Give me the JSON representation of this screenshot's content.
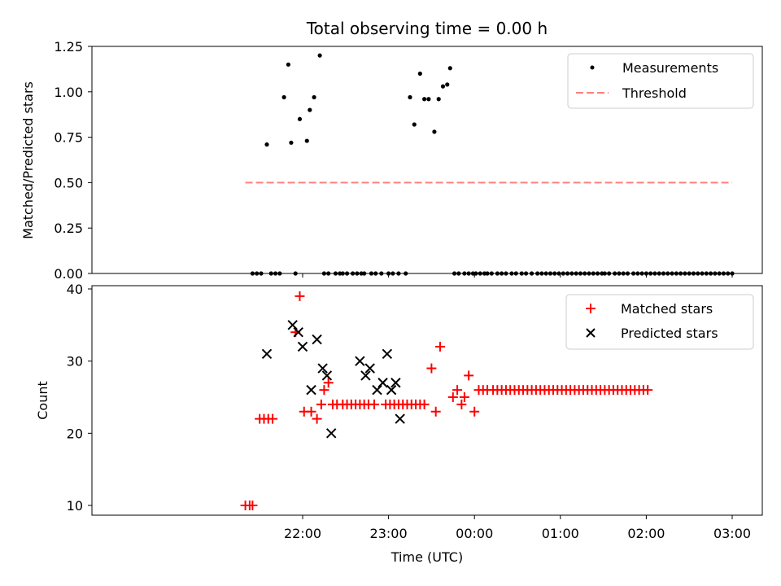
{
  "chart_data": [
    {
      "type": "scatter",
      "title": "Total observing time = 0.00 h",
      "ylabel": "Matched/Predicted stars",
      "xlabel": "",
      "ylim": [
        0,
        1.25
      ],
      "yticks": [
        "0.00",
        "0.25",
        "0.50",
        "0.75",
        "1.00",
        "1.25"
      ],
      "legend": {
        "placement": "top-right",
        "entries": [
          "Measurements",
          "Threshold"
        ]
      },
      "colors": {
        "measurements": "#000000",
        "threshold": "#ff7f7f"
      },
      "series": [
        {
          "name": "Measurements",
          "x": [
            "21:25",
            "21:28",
            "21:31",
            "21:35",
            "21:38",
            "21:41",
            "21:44",
            "21:47",
            "21:50",
            "21:52",
            "21:55",
            "21:58",
            "22:03",
            "22:05",
            "22:08",
            "22:12",
            "22:15",
            "22:18",
            "22:23",
            "22:26",
            "22:28",
            "22:31",
            "22:35",
            "22:38",
            "22:41",
            "22:43",
            "22:48",
            "22:51",
            "22:55",
            "23:00",
            "23:03",
            "23:07",
            "23:12",
            "23:15",
            "23:18",
            "23:22",
            "23:25",
            "23:28",
            "23:32",
            "23:35",
            "23:38",
            "23:41",
            "23:43",
            "23:46",
            "23:49",
            "23:53",
            "23:56",
            "23:59",
            "00:01",
            "00:04",
            "00:07",
            "00:09",
            "00:12",
            "00:16",
            "00:19",
            "00:22",
            "00:26",
            "00:29",
            "00:33",
            "00:36",
            "00:40",
            "00:44",
            "00:47",
            "00:50",
            "00:53",
            "00:56",
            "00:59",
            "01:02",
            "01:05",
            "01:08",
            "01:11",
            "01:14",
            "01:17",
            "01:20",
            "01:23",
            "01:26",
            "01:29",
            "01:31",
            "01:34",
            "01:38",
            "01:41",
            "01:44",
            "01:47",
            "01:51",
            "01:54",
            "01:57",
            "02:00",
            "02:03",
            "02:06",
            "02:09",
            "02:12",
            "02:15",
            "02:18",
            "02:21",
            "02:24",
            "02:27",
            "02:30",
            "02:33",
            "02:36",
            "02:39",
            "02:42",
            "02:45",
            "02:48",
            "02:51",
            "02:54",
            "02:57",
            "03:00"
          ],
          "y": [
            0,
            0,
            0,
            0.71,
            0,
            0,
            0,
            0.97,
            1.15,
            0.72,
            0,
            0.85,
            0.73,
            0.9,
            0.97,
            1.2,
            0,
            0,
            0,
            0,
            0,
            0,
            0,
            0,
            0,
            0,
            0,
            0,
            0,
            0,
            0,
            0,
            0,
            0.97,
            0.82,
            1.1,
            0.96,
            0.96,
            0.78,
            0.96,
            1.03,
            1.04,
            1.13,
            0,
            0,
            0,
            0,
            0,
            0,
            0,
            0,
            0,
            0,
            0,
            0,
            0,
            0,
            0,
            0,
            0,
            0,
            0,
            0,
            0,
            0,
            0,
            0,
            0,
            0,
            0,
            0,
            0,
            0,
            0,
            0,
            0,
            0,
            0,
            0,
            0,
            0,
            0,
            0,
            0,
            0,
            0,
            0,
            0,
            0,
            0,
            0,
            0,
            0,
            0,
            0,
            0,
            0,
            0,
            0,
            0,
            0,
            0,
            0,
            0,
            0,
            0,
            0
          ]
        },
        {
          "name": "Threshold",
          "x": [
            "21:20",
            "03:00"
          ],
          "y": [
            0.5,
            0.5
          ]
        }
      ]
    },
    {
      "type": "scatter",
      "title": "",
      "ylabel": "Count",
      "xlabel": "Time (UTC)",
      "ylim": [
        8,
        40
      ],
      "yticks": [
        "10",
        "20",
        "30",
        "40"
      ],
      "xticks": [
        "22:00",
        "23:00",
        "00:00",
        "01:00",
        "02:00",
        "03:00"
      ],
      "legend": {
        "placement": "top-right",
        "entries": [
          "Matched stars",
          "Predicted stars"
        ]
      },
      "colors": {
        "matched": "#ff0000",
        "predicted": "#000000"
      },
      "series": [
        {
          "name": "Matched stars",
          "x": [
            "21:20",
            "21:23",
            "21:25",
            "21:30",
            "21:33",
            "21:36",
            "21:39",
            "21:55",
            "21:58",
            "22:01",
            "22:06",
            "22:10",
            "22:13",
            "22:15",
            "22:18",
            "22:21",
            "22:24",
            "22:28",
            "22:31",
            "22:34",
            "22:37",
            "22:40",
            "22:43",
            "22:46",
            "22:50",
            "22:58",
            "23:01",
            "23:04",
            "23:07",
            "23:10",
            "23:13",
            "23:16",
            "23:19",
            "23:22",
            "23:25",
            "23:30",
            "23:33",
            "23:36",
            "23:45",
            "23:48",
            "23:51",
            "23:53",
            "23:56",
            "24:00",
            "24:03",
            "24:06",
            "24:09",
            "24:13",
            "24:16",
            "24:19",
            "24:22",
            "24:25",
            "24:28",
            "24:31",
            "24:34",
            "24:37",
            "24:40",
            "24:43",
            "24:46",
            "24:49",
            "24:52",
            "24:55",
            "24:58",
            "25:01",
            "25:04",
            "25:07",
            "25:10",
            "25:13",
            "25:16",
            "25:19",
            "25:22",
            "25:25",
            "25:28",
            "25:31",
            "25:34",
            "25:37",
            "25:40",
            "25:43",
            "25:46",
            "25:49",
            "25:52",
            "25:55",
            "25:58",
            "26:01"
          ],
          "y": [
            10,
            10,
            10,
            22,
            22,
            22,
            22,
            34,
            39,
            23,
            23,
            22,
            24,
            26,
            27,
            24,
            24,
            24,
            24,
            24,
            24,
            24,
            24,
            24,
            24,
            24,
            24,
            24,
            24,
            24,
            24,
            24,
            24,
            24,
            24,
            29,
            23,
            32,
            25,
            26,
            24,
            25,
            28,
            23,
            26,
            26,
            26,
            26,
            26,
            26,
            26,
            26,
            26,
            26,
            26,
            26,
            26,
            26,
            26,
            26,
            26,
            26,
            26,
            26,
            26,
            26,
            26,
            26,
            26,
            26,
            26,
            26,
            26,
            26,
            26,
            26,
            26,
            26,
            26,
            26,
            26,
            26,
            26,
            26
          ]
        },
        {
          "name": "Predicted stars",
          "x": [
            "21:35",
            "21:53",
            "21:57",
            "22:00",
            "22:06",
            "22:10",
            "22:14",
            "22:17",
            "22:20",
            "22:40",
            "22:44",
            "22:47",
            "22:52",
            "22:56",
            "22:59",
            "23:02",
            "23:05",
            "23:08"
          ],
          "y": [
            31,
            35,
            34,
            32,
            26,
            33,
            29,
            28,
            20,
            30,
            28,
            29,
            26,
            27,
            31,
            26,
            27,
            22
          ]
        }
      ]
    }
  ]
}
